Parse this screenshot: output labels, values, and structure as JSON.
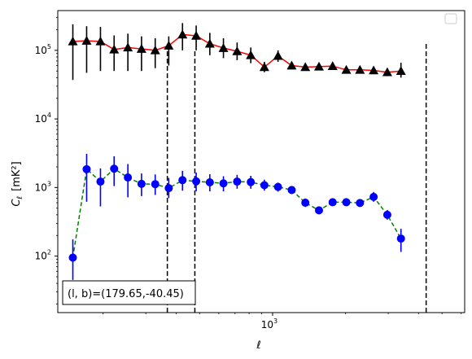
{
  "chart_data": {
    "type": "scatter",
    "xlabel": "ℓ",
    "ylabel_main": "C",
    "ylabel_sub": "ℓ",
    "ylabel_unit": "[mK²]",
    "xscale": "log",
    "yscale": "log",
    "xlim": [
      130,
      6200
    ],
    "ylim": [
      15,
      380000
    ],
    "x_ticks": [
      {
        "value": 1000,
        "base": "10",
        "exp": "3"
      }
    ],
    "y_ticks": [
      {
        "value": 100,
        "base": "10",
        "exp": "2"
      },
      {
        "value": 1000,
        "base": "10",
        "exp": "3"
      },
      {
        "value": 10000,
        "base": "10",
        "exp": "4"
      },
      {
        "value": 100000,
        "base": "10",
        "exp": "5"
      }
    ],
    "legend": {
      "placement": "top-right",
      "entries": []
    },
    "annotation": "(l, b)=(179.65,-40.45)",
    "vlines": [
      {
        "x": 368,
        "ymin": 15,
        "ymax": 100000
      },
      {
        "x": 478,
        "ymin": 15,
        "ymax": 100000
      },
      {
        "x": 4300,
        "ymin": 15,
        "ymax": 130000
      }
    ],
    "series": [
      {
        "marker": "triangle",
        "marker_color": "#000000",
        "line_color": "#ff0000",
        "line_style": "solid",
        "points": [
          {
            "x": 150,
            "y": 135000,
            "ylo": 37000,
            "yhi": 240000
          },
          {
            "x": 171,
            "y": 138000,
            "ylo": 47000,
            "yhi": 225000
          },
          {
            "x": 195,
            "y": 135000,
            "ylo": 50000,
            "yhi": 220000
          },
          {
            "x": 222,
            "y": 103000,
            "ylo": 50000,
            "yhi": 165000
          },
          {
            "x": 253,
            "y": 110000,
            "ylo": 50000,
            "yhi": 175000
          },
          {
            "x": 288,
            "y": 105000,
            "ylo": 50000,
            "yhi": 160000
          },
          {
            "x": 328,
            "y": 100000,
            "ylo": 55000,
            "yhi": 150000
          },
          {
            "x": 373,
            "y": 117000,
            "ylo": 60000,
            "yhi": 160000
          },
          {
            "x": 425,
            "y": 170000,
            "ylo": 100000,
            "yhi": 250000
          },
          {
            "x": 484,
            "y": 163000,
            "ylo": 100000,
            "yhi": 230000
          },
          {
            "x": 551,
            "y": 125000,
            "ylo": 85000,
            "yhi": 180000
          },
          {
            "x": 627,
            "y": 108000,
            "ylo": 77000,
            "yhi": 150000
          },
          {
            "x": 714,
            "y": 97000,
            "ylo": 72000,
            "yhi": 130000
          },
          {
            "x": 813,
            "y": 85000,
            "ylo": 65000,
            "yhi": 110000
          },
          {
            "x": 925,
            "y": 57000,
            "ylo": 48000,
            "yhi": 68000
          },
          {
            "x": 1053,
            "y": 83000,
            "ylo": 68000,
            "yhi": 100000
          },
          {
            "x": 1199,
            "y": 60000,
            "ylo": 53000,
            "yhi": 67000
          },
          {
            "x": 1365,
            "y": 57000,
            "ylo": 52000,
            "yhi": 63000
          },
          {
            "x": 1554,
            "y": 58000,
            "ylo": 53000,
            "yhi": 64000
          },
          {
            "x": 1769,
            "y": 59000,
            "ylo": 54000,
            "yhi": 64000
          },
          {
            "x": 2014,
            "y": 52000,
            "ylo": 48000,
            "yhi": 56000
          },
          {
            "x": 2293,
            "y": 52000,
            "ylo": 48000,
            "yhi": 56000
          },
          {
            "x": 2611,
            "y": 51000,
            "ylo": 46000,
            "yhi": 57000
          },
          {
            "x": 2973,
            "y": 48000,
            "ylo": 42000,
            "yhi": 55000
          },
          {
            "x": 3385,
            "y": 50000,
            "ylo": 40000,
            "yhi": 66000
          }
        ]
      },
      {
        "marker": "circle",
        "marker_color": "#0000ff",
        "line_color": "#008000",
        "line_style": "dashed",
        "points": [
          {
            "x": 150,
            "y": 95,
            "ylo": 45,
            "yhi": 175
          },
          {
            "x": 171,
            "y": 1850,
            "ylo": 620,
            "yhi": 3100
          },
          {
            "x": 195,
            "y": 1220,
            "ylo": 530,
            "yhi": 1900
          },
          {
            "x": 222,
            "y": 1880,
            "ylo": 1050,
            "yhi": 2850
          },
          {
            "x": 253,
            "y": 1400,
            "ylo": 720,
            "yhi": 2200
          },
          {
            "x": 288,
            "y": 1130,
            "ylo": 750,
            "yhi": 1600
          },
          {
            "x": 328,
            "y": 1120,
            "ylo": 780,
            "yhi": 1550
          },
          {
            "x": 373,
            "y": 980,
            "ylo": 700,
            "yhi": 1380
          },
          {
            "x": 425,
            "y": 1280,
            "ylo": 900,
            "yhi": 1750
          },
          {
            "x": 484,
            "y": 1230,
            "ylo": 880,
            "yhi": 1650
          },
          {
            "x": 551,
            "y": 1190,
            "ylo": 880,
            "yhi": 1560
          },
          {
            "x": 627,
            "y": 1150,
            "ylo": 880,
            "yhi": 1460
          },
          {
            "x": 714,
            "y": 1220,
            "ylo": 960,
            "yhi": 1530
          },
          {
            "x": 813,
            "y": 1200,
            "ylo": 960,
            "yhi": 1480
          },
          {
            "x": 925,
            "y": 1080,
            "ylo": 900,
            "yhi": 1300
          },
          {
            "x": 1053,
            "y": 1020,
            "ylo": 870,
            "yhi": 1180
          },
          {
            "x": 1199,
            "y": 920,
            "ylo": 800,
            "yhi": 1050
          },
          {
            "x": 1365,
            "y": 600,
            "ylo": 520,
            "yhi": 690
          },
          {
            "x": 1554,
            "y": 465,
            "ylo": 410,
            "yhi": 530
          },
          {
            "x": 1769,
            "y": 610,
            "ylo": 550,
            "yhi": 680
          },
          {
            "x": 2014,
            "y": 610,
            "ylo": 550,
            "yhi": 680
          },
          {
            "x": 2293,
            "y": 595,
            "ylo": 530,
            "yhi": 670
          },
          {
            "x": 2611,
            "y": 730,
            "ylo": 620,
            "yhi": 860
          },
          {
            "x": 2973,
            "y": 400,
            "ylo": 340,
            "yhi": 470
          },
          {
            "x": 3385,
            "y": 180,
            "ylo": 115,
            "yhi": 250
          }
        ]
      }
    ]
  }
}
